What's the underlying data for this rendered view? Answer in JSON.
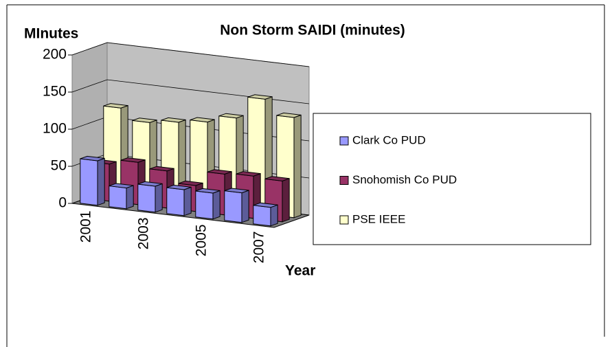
{
  "chart_data": {
    "type": "bar3d",
    "title": "Non Storm SAIDI (minutes)",
    "y_label": "MInutes",
    "x_label": "Year",
    "categories": [
      "2001",
      null,
      "2003",
      null,
      "2005",
      null,
      "2007"
    ],
    "series": [
      {
        "name": "Clark Co PUD",
        "color": "#9999ff",
        "values": [
          60,
          28,
          35,
          35,
          35,
          40,
          25
        ]
      },
      {
        "name": "Snohomish Co PUD",
        "color": "#993366",
        "values": [
          50,
          57,
          50,
          35,
          55,
          57,
          55
        ]
      },
      {
        "name": "PSE IEEE",
        "color": "#ffffcc",
        "values": [
          120,
          105,
          110,
          115,
          125,
          155,
          135
        ]
      }
    ],
    "ylim": [
      0,
      200
    ],
    "yticks": [
      0,
      50,
      100,
      150,
      200
    ],
    "grid": true,
    "legend": "right"
  }
}
